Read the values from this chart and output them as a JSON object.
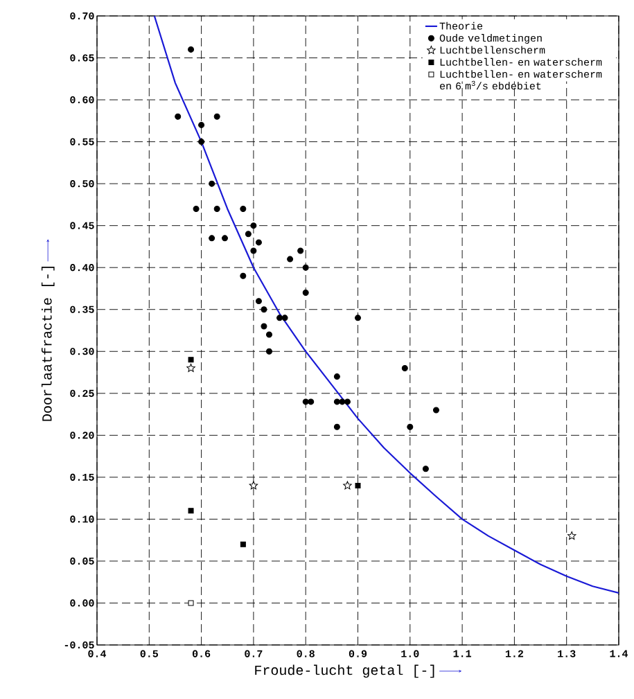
{
  "chart_data": {
    "type": "scatter",
    "xlabel": "Froude-lucht getal [-]",
    "ylabel": "Doorlaatfractie [-]",
    "xlim": [
      0.4,
      1.4
    ],
    "ylim": [
      -0.05,
      0.7
    ],
    "xticks": [
      {
        "value": 0.4,
        "label": "0.4"
      },
      {
        "value": 0.5,
        "label": "0.5"
      },
      {
        "value": 0.6,
        "label": "0.6"
      },
      {
        "value": 0.7,
        "label": "0.7"
      },
      {
        "value": 0.8,
        "label": "0.8"
      },
      {
        "value": 0.9,
        "label": "0.9"
      },
      {
        "value": 1.0,
        "label": "1.0"
      },
      {
        "value": 1.1,
        "label": "1.1"
      },
      {
        "value": 1.2,
        "label": "1.2"
      },
      {
        "value": 1.3,
        "label": "1.3"
      },
      {
        "value": 1.4,
        "label": "1.4"
      }
    ],
    "yticks": [
      {
        "value": -0.05,
        "label": "-0.05"
      },
      {
        "value": 0.0,
        "label": "0.00"
      },
      {
        "value": 0.05,
        "label": "0.05"
      },
      {
        "value": 0.1,
        "label": "0.10"
      },
      {
        "value": 0.15,
        "label": "0.15"
      },
      {
        "value": 0.2,
        "label": "0.20"
      },
      {
        "value": 0.25,
        "label": "0.25"
      },
      {
        "value": 0.3,
        "label": "0.30"
      },
      {
        "value": 0.35,
        "label": "0.35"
      },
      {
        "value": 0.4,
        "label": "0.40"
      },
      {
        "value": 0.45,
        "label": "0.45"
      },
      {
        "value": 0.5,
        "label": "0.50"
      },
      {
        "value": 0.55,
        "label": "0.55"
      },
      {
        "value": 0.6,
        "label": "0.60"
      },
      {
        "value": 0.65,
        "label": "0.65"
      },
      {
        "value": 0.7,
        "label": "0.70"
      }
    ],
    "grid": true,
    "legend": "top right",
    "series": [
      {
        "name": "Theorie",
        "type": "line",
        "color": "#1a1ad6",
        "marker": "none",
        "line_style": "solid",
        "x": [
          0.51,
          0.55,
          0.6,
          0.65,
          0.7,
          0.75,
          0.8,
          0.85,
          0.9,
          0.95,
          1.0,
          1.05,
          1.1,
          1.15,
          1.2,
          1.25,
          1.3,
          1.35,
          1.4
        ],
        "values": [
          0.7,
          0.62,
          0.55,
          0.47,
          0.4,
          0.345,
          0.3,
          0.26,
          0.22,
          0.185,
          0.155,
          0.127,
          0.1,
          0.08,
          0.063,
          0.046,
          0.032,
          0.02,
          0.012
        ]
      },
      {
        "name": "Oude veldmetingen",
        "color": "#000000",
        "marker": "circle",
        "x": [
          0.58,
          0.555,
          0.63,
          0.6,
          0.6,
          0.62,
          0.59,
          0.63,
          0.68,
          0.7,
          0.69,
          0.62,
          0.645,
          0.71,
          0.7,
          0.79,
          0.77,
          0.8,
          0.68,
          0.8,
          0.71,
          0.72,
          0.75,
          0.76,
          0.9,
          0.72,
          0.73,
          0.73,
          0.99,
          0.86,
          0.8,
          0.81,
          0.86,
          0.87,
          0.88,
          0.86,
          1.0,
          1.05,
          1.03
        ],
        "values": [
          0.66,
          0.58,
          0.58,
          0.57,
          0.55,
          0.5,
          0.47,
          0.47,
          0.47,
          0.45,
          0.44,
          0.435,
          0.435,
          0.43,
          0.42,
          0.42,
          0.41,
          0.4,
          0.39,
          0.37,
          0.36,
          0.35,
          0.34,
          0.34,
          0.34,
          0.33,
          0.32,
          0.3,
          0.28,
          0.27,
          0.24,
          0.24,
          0.24,
          0.24,
          0.24,
          0.21,
          0.21,
          0.23,
          0.16
        ]
      },
      {
        "name": "Luchtbellenscherm",
        "color": "#000000",
        "marker": "star",
        "x": [
          0.58,
          0.7,
          0.88,
          1.31
        ],
        "values": [
          0.28,
          0.14,
          0.14,
          0.08
        ]
      },
      {
        "name": "Luchtbellen- en waterscherm",
        "color": "#000000",
        "marker": "square",
        "x": [
          0.58,
          0.58,
          0.68,
          0.9
        ],
        "values": [
          0.29,
          0.11,
          0.07,
          0.14
        ]
      },
      {
        "name": "Luchtbellen- en waterscherm en 6 m$^{3}$/s ebdebiet",
        "color": "#000000",
        "marker": "square",
        "x": [
          0.58
        ],
        "values": [
          0.0
        ]
      }
    ]
  }
}
